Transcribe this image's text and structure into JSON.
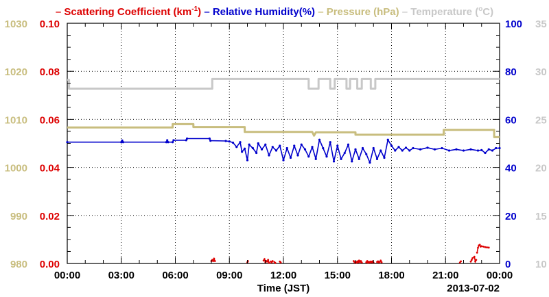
{
  "chart_data": {
    "type": "line",
    "legend": [
      {
        "key": "scat",
        "prefix": "–",
        "text": "Scattering Coefficient (km",
        "sup": "-1",
        "tail": ")",
        "color": "#dd0000"
      },
      {
        "key": "rh",
        "prefix": "–",
        "text": "Relative Humidity(%)",
        "color": "#0000cc"
      },
      {
        "key": "pres",
        "prefix": "–",
        "text": "Pressure (hPa)",
        "color": "#c8bd7e"
      },
      {
        "key": "temp",
        "prefix": "–",
        "text": "Temperature (",
        "sup": "o",
        "tail": "C)",
        "color": "#c8c8c8"
      }
    ],
    "xlabel": "Time (JST)",
    "date_label": "2013-07-02",
    "x_ticks": [
      "00:00",
      "03:00",
      "06:00",
      "09:00",
      "12:00",
      "15:00",
      "18:00",
      "21:00",
      "00:00"
    ],
    "xlim": [
      0,
      24
    ],
    "axes": {
      "pressure": {
        "ticks": [
          "980",
          "990",
          "1000",
          "1010",
          "1020",
          "1030"
        ],
        "lim": [
          980,
          1030
        ],
        "color": "#c8bd7e"
      },
      "scattering": {
        "ticks": [
          "0.00",
          "0.02",
          "0.04",
          "0.06",
          "0.08",
          "0.10"
        ],
        "lim": [
          0,
          0.1
        ],
        "color": "#dd0000"
      },
      "humidity": {
        "ticks": [
          "0",
          "20",
          "40",
          "60",
          "80",
          "100"
        ],
        "lim": [
          0,
          100
        ],
        "color": "#0000cc"
      },
      "temperature": {
        "ticks": [
          "10",
          "15",
          "20",
          "25",
          "30",
          "35"
        ],
        "lim": [
          10,
          35
        ],
        "color": "#c8c8c8"
      }
    },
    "grid": true,
    "series": [
      {
        "key": "temperature",
        "axis": "temperature",
        "color": "#c8c8c8",
        "x": [
          0,
          0.1,
          0.1,
          8.05,
          8.05,
          13.4,
          13.4,
          13.95,
          13.95,
          14.6,
          14.6,
          14.85,
          14.85,
          15.5,
          15.5,
          15.7,
          15.7,
          16.1,
          16.1,
          16.35,
          16.35,
          16.85,
          16.85,
          17.1,
          17.1,
          24
        ],
        "y": [
          29.1,
          29.1,
          28.2,
          28.2,
          29.2,
          29.2,
          28.2,
          28.2,
          29.2,
          29.2,
          28.2,
          28.2,
          29.2,
          29.2,
          28.2,
          28.2,
          29.2,
          29.2,
          28.2,
          28.2,
          29.2,
          29.2,
          28.2,
          28.2,
          29.2,
          29.2
        ]
      },
      {
        "key": "pressure",
        "axis": "pressure",
        "color": "#c8bd7e",
        "x": [
          0,
          5.85,
          5.85,
          7.0,
          7.0,
          9.85,
          9.85,
          13.6,
          13.7,
          13.8,
          16.0,
          16.0,
          20.9,
          20.9,
          23.7,
          23.7,
          24
        ],
        "y": [
          1008.3,
          1008.3,
          1009.0,
          1009.0,
          1008.4,
          1008.4,
          1007.4,
          1007.4,
          1006.6,
          1007.3,
          1007.3,
          1006.8,
          1006.8,
          1007.8,
          1007.8,
          1006.3,
          1006.3
        ]
      },
      {
        "key": "humidity",
        "axis": "humidity",
        "color": "#0000cc",
        "x": [
          0,
          3.0,
          3.05,
          3.1,
          5.5,
          5.55,
          5.6,
          5.85,
          5.9,
          6.6,
          6.65,
          7.9,
          7.95,
          8.8,
          9.0,
          9.2,
          9.4,
          9.6,
          9.7,
          9.85,
          10.0,
          10.1,
          10.3,
          10.5,
          10.6,
          10.8,
          11.0,
          11.2,
          11.4,
          11.6,
          11.8,
          12.0,
          12.2,
          12.4,
          12.6,
          12.8,
          13.0,
          13.2,
          13.4,
          13.6,
          13.8,
          14.0,
          14.2,
          14.4,
          14.6,
          14.8,
          15.0,
          15.2,
          15.4,
          15.6,
          15.8,
          16.0,
          16.2,
          16.4,
          16.6,
          16.8,
          17.0,
          17.2,
          17.4,
          17.6,
          17.8,
          18.0,
          18.2,
          18.4,
          18.6,
          18.8,
          19.0,
          19.2,
          19.6,
          20.0,
          20.4,
          20.8,
          21.2,
          21.6,
          22.0,
          22.4,
          22.8,
          23.0,
          23.2,
          23.4,
          23.6,
          23.8,
          24
        ],
        "y": [
          50.5,
          50.5,
          51.2,
          50.5,
          50.5,
          51.3,
          50.5,
          50.5,
          51.3,
          51.3,
          52.0,
          52.0,
          51.1,
          51.0,
          50.8,
          50.3,
          48.5,
          50.5,
          46.5,
          47.8,
          43.0,
          49.5,
          48.0,
          46.0,
          50.0,
          47.5,
          49.5,
          45.0,
          48.5,
          47.0,
          49.0,
          43.0,
          48.0,
          44.0,
          49.0,
          45.0,
          49.5,
          47.5,
          44.5,
          48.5,
          43.5,
          51.5,
          48.0,
          44.5,
          50.5,
          42.5,
          49.0,
          43.5,
          46.0,
          49.5,
          42.5,
          47.5,
          43.5,
          48.0,
          45.5,
          42.0,
          48.0,
          43.5,
          47.0,
          44.0,
          51.5,
          49.0,
          47.0,
          48.5,
          47.0,
          48.2,
          47.0,
          48.0,
          47.5,
          48.2,
          47.5,
          48.0,
          47.0,
          47.5,
          47.0,
          47.5,
          47.0,
          47.2,
          46.0,
          47.5,
          47.0,
          48.0,
          48.0
        ]
      }
    ],
    "scattering_segments": [
      {
        "x": [
          8.0,
          8.05,
          8.1,
          8.15,
          8.2
        ],
        "y": [
          0.001,
          0.0015,
          0.001,
          0.002,
          0.001
        ]
      },
      {
        "x": [
          10.0,
          10.03
        ],
        "y": [
          0.0005,
          0.001
        ]
      },
      {
        "x": [
          10.9,
          10.95,
          11.0,
          11.05,
          11.1,
          11.15,
          11.2
        ],
        "y": [
          0.0012,
          0.0018,
          0.0005,
          0.001,
          0.0008,
          0.0015,
          0.0003
        ]
      },
      {
        "x": [
          11.3,
          11.35,
          11.4
        ],
        "y": [
          0.0008,
          0.0004,
          0.001
        ]
      },
      {
        "x": [
          11.5,
          11.55
        ],
        "y": [
          0.0006,
          0.0002
        ]
      },
      {
        "x": [
          11.8,
          11.85
        ],
        "y": [
          0.0008,
          0.0004
        ]
      },
      {
        "x": [
          15.9,
          15.95,
          16.0,
          16.05,
          16.1,
          16.15,
          16.2,
          16.25,
          16.3,
          16.35
        ],
        "y": [
          0.001,
          0.0004,
          0.0007,
          0.0003,
          0.0009,
          0.0005,
          0.0012,
          0.0006,
          0.001,
          0.0004
        ]
      },
      {
        "x": [
          16.6,
          16.65,
          16.7,
          16.75,
          16.8,
          16.85,
          16.9,
          16.95,
          17.0
        ],
        "y": [
          0.0005,
          0.001,
          0.0003,
          0.0007,
          0.0004,
          0.0008,
          0.0005,
          0.0009,
          0.0003
        ]
      },
      {
        "x": [
          17.2,
          17.25,
          17.3,
          17.35,
          17.4,
          17.45
        ],
        "y": [
          0.0006,
          0.0009,
          0.0004,
          0.0007,
          0.0012,
          0.0005
        ]
      },
      {
        "x": [
          21.8,
          21.85
        ],
        "y": [
          0.0004,
          0.0009
        ]
      },
      {
        "x": [
          22.4,
          22.45,
          22.5,
          22.6,
          22.65,
          22.7
        ],
        "y": [
          0.0008,
          0.0015,
          0.0022,
          0.0028,
          0.0008,
          0.0015
        ]
      },
      {
        "x": [
          22.75,
          22.8,
          22.85,
          22.9,
          22.95,
          23.0,
          23.1,
          23.2,
          23.3,
          23.4
        ],
        "y": [
          0.0045,
          0.0065,
          0.0075,
          0.0078,
          0.007,
          0.0072,
          0.007,
          0.0068,
          0.0067,
          0.0066
        ]
      }
    ]
  }
}
